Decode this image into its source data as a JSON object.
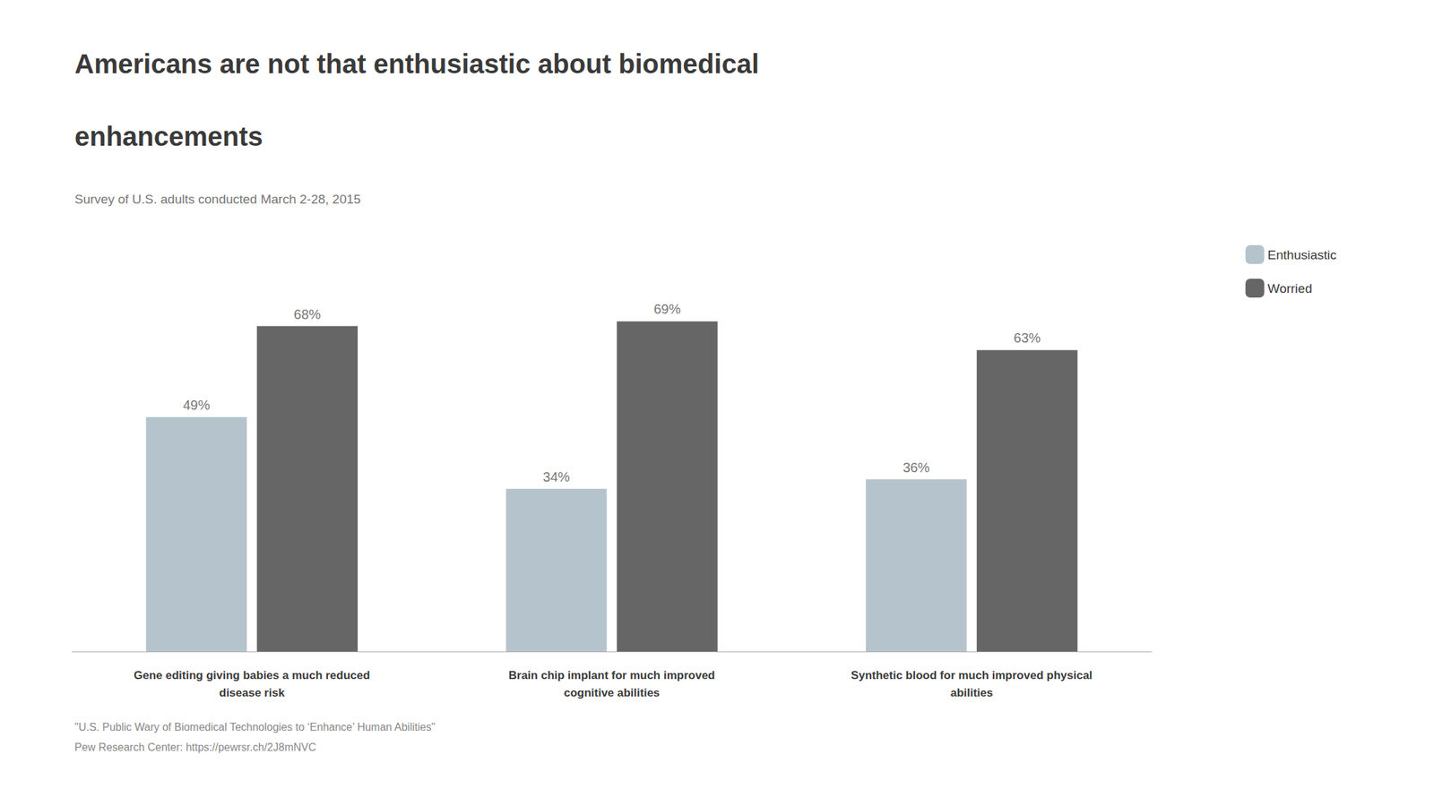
{
  "chart_data": {
    "type": "bar",
    "title": "Americans are not that enthusiastic about biomedical\nenhancements",
    "subtitle": "Survey of U.S. adults conducted March 2-28, 2015",
    "annotations": [
      "\"U.S. Public Wary of Biomedical Technologies to ‘Enhance’ Human Abilities\"",
      "Pew Research Center: https://pewrsr.ch/2J8mNVC"
    ],
    "categories": [
      "Gene editing giving babies a much reduced\ndisease risk",
      "Brain chip implant for much improved\ncognitive abilities",
      "Synthetic blood for much improved physical\nabilities"
    ],
    "series": [
      {
        "name": "Enthusiastic",
        "color": "#b5c4cc",
        "values": [
          49,
          34,
          36
        ],
        "value_labels": [
          "49%",
          "34%",
          "36%"
        ]
      },
      {
        "name": "Worried",
        "color": "#666666",
        "values": [
          68,
          69,
          63
        ],
        "value_labels": [
          "68%",
          "69%",
          "63%"
        ]
      }
    ],
    "ylim": [
      0,
      80
    ],
    "grid": false,
    "legend": "upper right",
    "data_labels": true,
    "tick_labels": "x"
  }
}
